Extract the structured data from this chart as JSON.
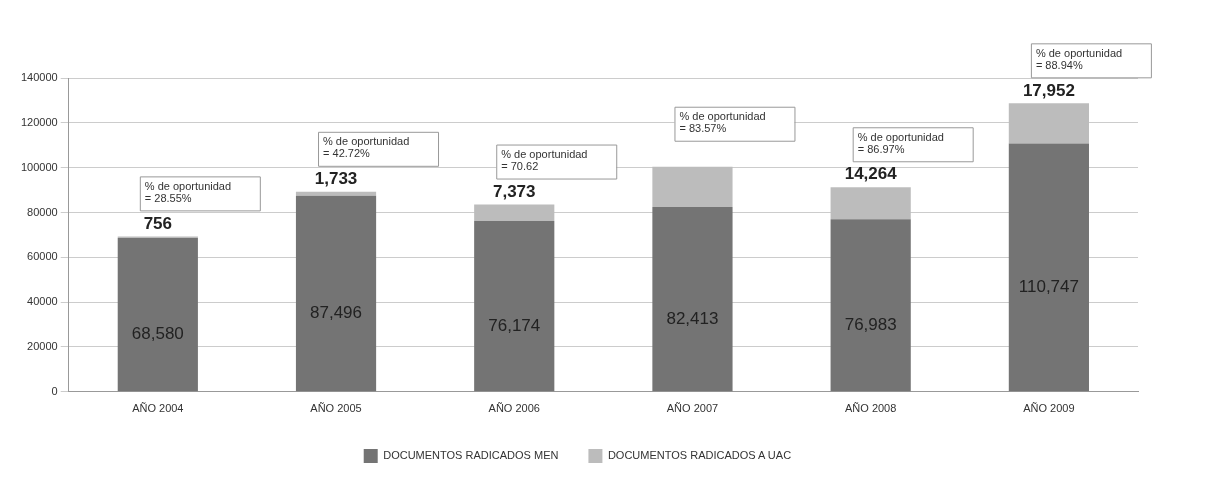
{
  "chart_data": {
    "type": "bar",
    "stacked": true,
    "categories": [
      "AÑO 2004",
      "AÑO 2005",
      "AÑO 2006",
      "AÑO 2007",
      "AÑO 2008",
      "AÑO 2009"
    ],
    "series": [
      {
        "name": "DOCUMENTOS RADICADOS MEN",
        "color": "#747474",
        "values": [
          68580,
          87496,
          76174,
          82413,
          76983,
          110747
        ],
        "value_labels": [
          "68,580",
          "87,496",
          "76,174",
          "82,413",
          "76,983",
          "110,747"
        ]
      },
      {
        "name": "DOCUMENTOS RADICADOS A UAC",
        "color": "#bcbcbc",
        "values": [
          756,
          1733,
          7373,
          18000,
          14264,
          17952
        ],
        "value_labels": [
          "756",
          "1,733",
          "7,373",
          null,
          "14,264",
          "17,952"
        ]
      }
    ],
    "ylim": [
      0,
      140000
    ],
    "yticks": [
      0,
      20000,
      40000,
      60000,
      80000,
      100000,
      120000,
      140000
    ],
    "grid": "y",
    "legend": "bottom",
    "annotations": [
      "% de oportunidad = 28.55%",
      "% de oportunidad = 42.72%",
      "% de oportunidad = 70.62",
      "% de oportunidad = 83.57%",
      "% de oportunidad = 86.97%",
      "% de oportunidad = 88.94%"
    ]
  }
}
